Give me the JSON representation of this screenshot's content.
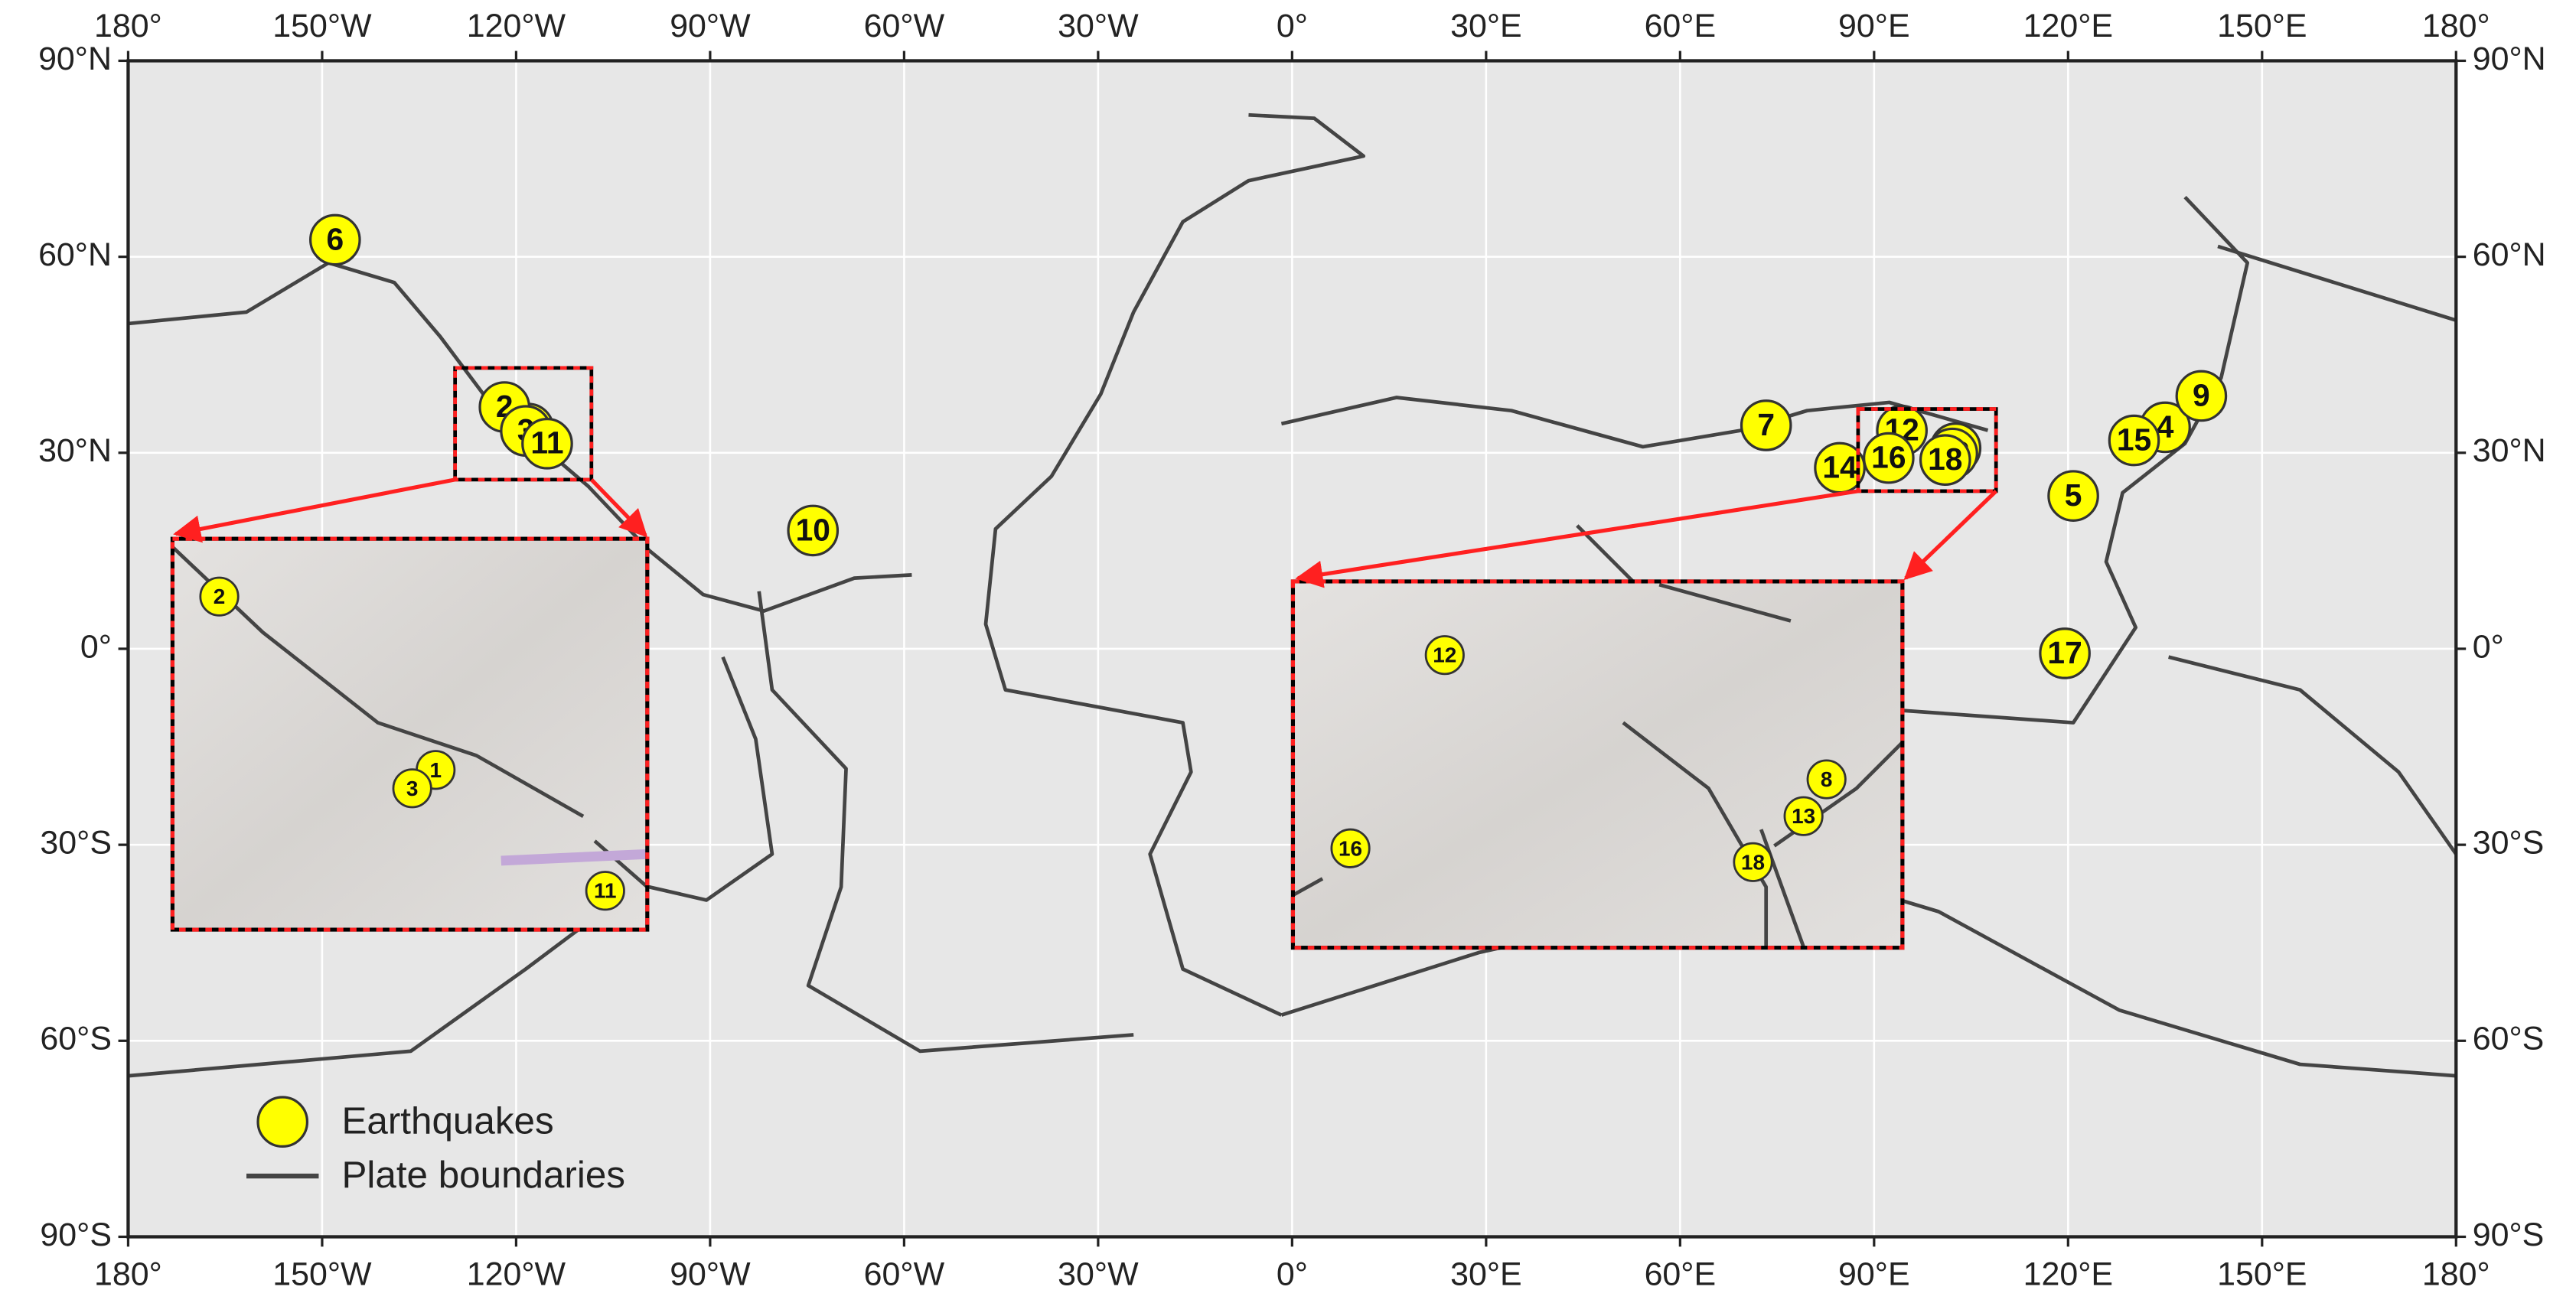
{
  "chart_data": {
    "type": "map",
    "xlim": [
      -180,
      180
    ],
    "ylim": [
      -90,
      90
    ],
    "xticks": [
      {
        "value": -180,
        "label": "180°"
      },
      {
        "value": -150,
        "label": "150°W"
      },
      {
        "value": -120,
        "label": "120°W"
      },
      {
        "value": -90,
        "label": "90°W"
      },
      {
        "value": -60,
        "label": "60°W"
      },
      {
        "value": -30,
        "label": "30°W"
      },
      {
        "value": 0,
        "label": "0°"
      },
      {
        "value": 30,
        "label": "30°E"
      },
      {
        "value": 60,
        "label": "60°E"
      },
      {
        "value": 90,
        "label": "90°E"
      },
      {
        "value": 120,
        "label": "120°E"
      },
      {
        "value": 150,
        "label": "150°E"
      },
      {
        "value": 180,
        "label": "180°"
      }
    ],
    "yticks": [
      {
        "value": -90,
        "label": "90°S"
      },
      {
        "value": -60,
        "label": "60°S"
      },
      {
        "value": -30,
        "label": "30°S"
      },
      {
        "value": 0,
        "label": "0°"
      },
      {
        "value": 30,
        "label": "30°N"
      },
      {
        "value": 60,
        "label": "60°N"
      },
      {
        "value": 90,
        "label": "90°N"
      }
    ],
    "grid": true,
    "series": [
      {
        "name": "Earthquakes",
        "color": "#ffff00",
        "labels": [
          "1",
          "2",
          "3",
          "4",
          "5",
          "6",
          "7",
          "8",
          "9",
          "10",
          "11",
          "12",
          "13",
          "14",
          "15",
          "16",
          "17",
          "18"
        ],
        "x": [
          -118.1,
          -121.8,
          -118.5,
          135.0,
          120.8,
          -148.0,
          73.3,
          102.6,
          140.6,
          -74.1,
          -115.2,
          94.3,
          102.1,
          84.7,
          130.2,
          92.25,
          119.5,
          101.0
        ],
        "values": [
          33.7,
          37.0,
          33.35,
          33.9,
          23.4,
          62.6,
          34.2,
          30.7,
          38.7,
          18.1,
          31.4,
          33.4,
          29.9,
          27.7,
          31.9,
          29.2,
          -0.7,
          28.9
        ]
      }
    ],
    "lines": [
      {
        "name": "Plate boundaries",
        "color": "#444444"
      }
    ]
  }
}
